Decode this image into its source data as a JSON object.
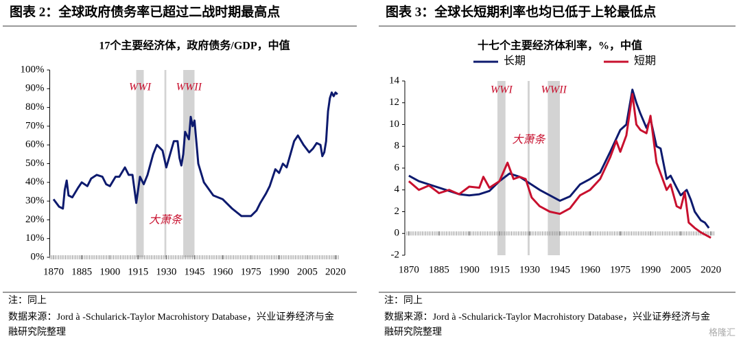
{
  "chart_data": [
    {
      "type": "line",
      "heading": "图表 2：全球政府债务率已超过二战时期最高点",
      "subtitle": "17个主要经济体，政府债务/GDP，中值",
      "color": "#0d1a6e",
      "x": [
        1870,
        1873,
        1875,
        1876,
        1877,
        1878,
        1880,
        1883,
        1885,
        1888,
        1890,
        1893,
        1896,
        1898,
        1900,
        1903,
        1905,
        1908,
        1910,
        1912,
        1914,
        1916,
        1918,
        1920,
        1923,
        1925,
        1928,
        1930,
        1932,
        1934,
        1936,
        1937,
        1938,
        1939,
        1940,
        1942,
        1943,
        1944,
        1945,
        1947,
        1950,
        1955,
        1960,
        1965,
        1970,
        1973,
        1975,
        1978,
        1980,
        1983,
        1985,
        1988,
        1990,
        1992,
        1994,
        1996,
        1998,
        2000,
        2003,
        2006,
        2008,
        2010,
        2012,
        2013,
        2014,
        2015,
        2016,
        2017,
        2018,
        2019,
        2020,
        2021
      ],
      "values": [
        31,
        27,
        26,
        36,
        41,
        33,
        32,
        37,
        40,
        38,
        42,
        44,
        43,
        39,
        38,
        43,
        43,
        48,
        44,
        44,
        29,
        43,
        39,
        44,
        55,
        60,
        57,
        48,
        55,
        62,
        62,
        53,
        49,
        55,
        67,
        63,
        75,
        70,
        73,
        50,
        40,
        33,
        31,
        26,
        22,
        22,
        22,
        25,
        29,
        34,
        38,
        47,
        45,
        50,
        48,
        55,
        62,
        65,
        60,
        56,
        58,
        61,
        60,
        54,
        56,
        62,
        78,
        85,
        88,
        86,
        88,
        87
      ],
      "xlim": [
        1868,
        2022
      ],
      "xticks": [
        1870,
        1885,
        1900,
        1915,
        1930,
        1945,
        1960,
        1975,
        1990,
        2005,
        2020
      ],
      "ylim": [
        0,
        100
      ],
      "yticks": [
        {
          "value": 0,
          "label": "0%"
        },
        {
          "value": 10,
          "label": "10%"
        },
        {
          "value": 20,
          "label": "20%"
        },
        {
          "value": 30,
          "label": "30%"
        },
        {
          "value": 40,
          "label": "40%"
        },
        {
          "value": 50,
          "label": "50%"
        },
        {
          "value": 60,
          "label": "60%"
        },
        {
          "value": 70,
          "label": "70%"
        },
        {
          "value": 80,
          "label": "80%"
        },
        {
          "value": 90,
          "label": "90%"
        },
        {
          "value": 100,
          "label": "100%"
        }
      ],
      "bands": [
        {
          "label": "WWI",
          "x": [
            1914,
            1918
          ]
        },
        {
          "label": "WWII",
          "x": [
            1939,
            1945
          ]
        },
        {
          "label": "大萧条",
          "x": [
            1929,
            1930
          ]
        }
      ],
      "notes": [
        "注：同上",
        "数据来源：Jord à -Schularick-Taylor Macrohistory Database，兴业证券经济与金融研究院整理"
      ]
    },
    {
      "type": "line",
      "heading": "图表 3：全球长短期利率也均已低于上轮最低点",
      "subtitle": "十七个主要经济体利率，%，中值",
      "series": [
        {
          "name": "长期",
          "color": "#0d1a6e",
          "x": [
            1870,
            1875,
            1880,
            1885,
            1890,
            1895,
            1900,
            1905,
            1910,
            1915,
            1920,
            1925,
            1930,
            1935,
            1940,
            1945,
            1950,
            1955,
            1960,
            1965,
            1970,
            1975,
            1978,
            1981,
            1983,
            1985,
            1988,
            1990,
            1993,
            1995,
            1998,
            2000,
            2003,
            2005,
            2008,
            2010,
            2012,
            2015,
            2017,
            2019
          ],
          "values": [
            5.3,
            4.8,
            4.5,
            4.2,
            3.9,
            3.6,
            3.5,
            3.6,
            3.9,
            4.8,
            5.5,
            5.2,
            4.6,
            4.0,
            3.5,
            3.0,
            3.4,
            4.5,
            5.0,
            5.6,
            7.5,
            9.5,
            10,
            13.2,
            12,
            11,
            9.7,
            10.5,
            8,
            7.8,
            5,
            5.3,
            4.2,
            3.5,
            4.0,
            3.1,
            2.0,
            1.2,
            1.0,
            0.5
          ]
        },
        {
          "name": "短期",
          "color": "#c8102e",
          "x": [
            1870,
            1875,
            1880,
            1885,
            1890,
            1895,
            1900,
            1905,
            1907,
            1910,
            1915,
            1919,
            1922,
            1925,
            1928,
            1931,
            1935,
            1940,
            1945,
            1950,
            1955,
            1960,
            1965,
            1970,
            1973,
            1975,
            1978,
            1981,
            1983,
            1985,
            1988,
            1990,
            1993,
            1995,
            1998,
            2000,
            2003,
            2005,
            2007,
            2009,
            2012,
            2015,
            2018,
            2020
          ],
          "values": [
            4.8,
            4.0,
            4.4,
            3.7,
            4.0,
            3.6,
            4.3,
            4.2,
            5.2,
            4.2,
            4.8,
            6.5,
            5.0,
            5.2,
            5.0,
            3.3,
            2.5,
            2.0,
            1.8,
            2.3,
            3.5,
            4.0,
            5.0,
            7.0,
            8.5,
            7.5,
            9.0,
            12.8,
            10,
            9.5,
            9.2,
            10.8,
            6.5,
            5.5,
            4.0,
            4.5,
            2.5,
            2.3,
            3.8,
            1.0,
            0.5,
            0.1,
            -0.2,
            -0.4
          ]
        }
      ],
      "xlim": [
        1868,
        2022
      ],
      "xticks": [
        1870,
        1885,
        1900,
        1915,
        1930,
        1945,
        1960,
        1975,
        1990,
        2005,
        2020
      ],
      "ylim": [
        -2,
        14
      ],
      "yticks": [
        -2,
        0,
        2,
        4,
        6,
        8,
        10,
        12,
        14
      ],
      "bands": [
        {
          "label": "WWI",
          "x": [
            1914,
            1918
          ]
        },
        {
          "label": "WWII",
          "x": [
            1939,
            1945
          ]
        },
        {
          "label": "大萧条",
          "x": [
            1929,
            1930
          ]
        }
      ],
      "notes": [
        "注：同上",
        "数据来源：Jord à -Schularick-Taylor Macrohistory Database，兴业证券经济与金融研究院整理"
      ],
      "watermark": "格隆汇"
    }
  ]
}
